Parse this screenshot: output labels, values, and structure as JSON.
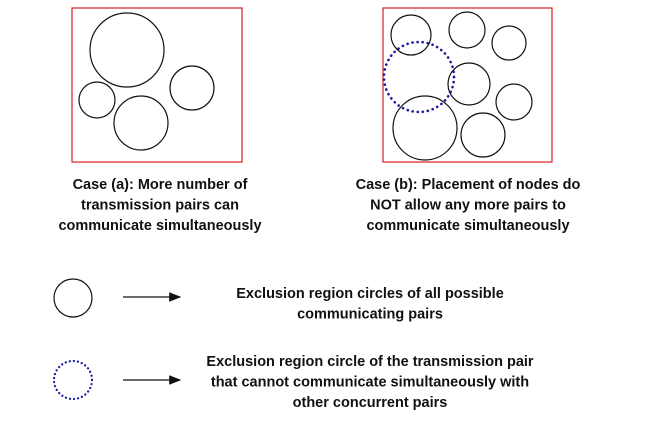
{
  "captions": [
    {
      "lines": [
        "Case (a):  More number of",
        "transmission pairs can",
        "communicate simultaneously"
      ]
    },
    {
      "lines": [
        "Case (b):  Placement of nodes do",
        "NOT allow any more pairs to",
        "communicate simultaneously"
      ]
    }
  ],
  "legend": [
    {
      "lines": [
        "Exclusion region circles of all possible",
        "communicating pairs"
      ]
    },
    {
      "lines": [
        "Exclusion region circle of the transmission pair",
        "that cannot communicate simultaneously with",
        "other concurrent pairs"
      ]
    }
  ]
}
